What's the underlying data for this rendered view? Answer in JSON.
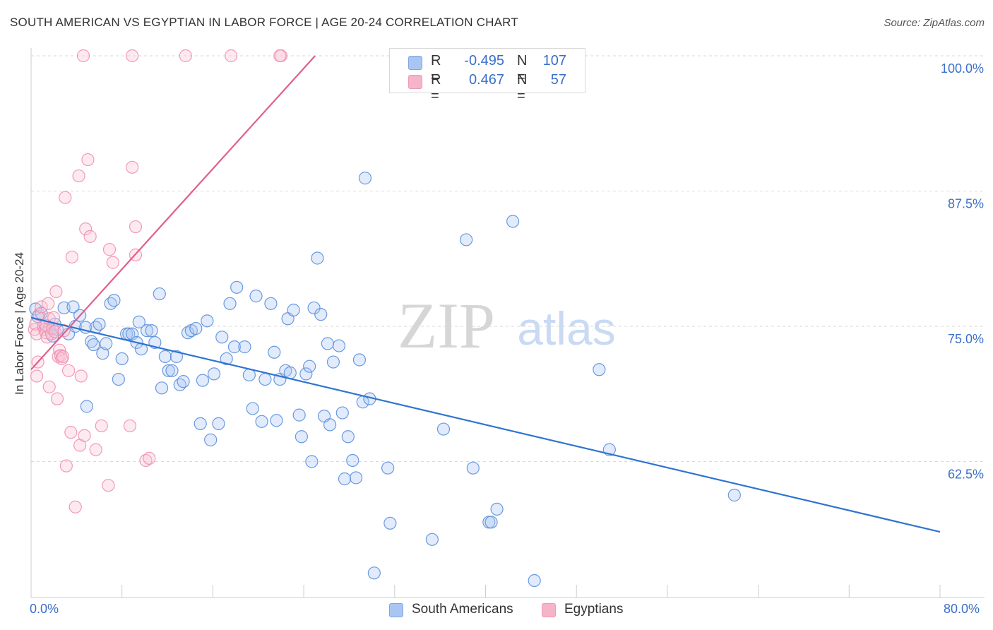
{
  "header": {
    "title": "SOUTH AMERICAN VS EGYPTIAN IN LABOR FORCE | AGE 20-24 CORRELATION CHART",
    "source": "Source: ZipAtlas.com"
  },
  "watermark": {
    "zip": "ZIP",
    "atlas": "atlas"
  },
  "legend": {
    "rows": [
      {
        "r_label": "R =",
        "r_value": "-0.495",
        "n_label": "N =",
        "n_value": "107",
        "color": "#a9c6f3"
      },
      {
        "r_label": "R =",
        "r_value": "0.467",
        "n_label": "N =",
        "n_value": "57",
        "color": "#f6b4c9"
      }
    ]
  },
  "bottom_legend": {
    "items": [
      {
        "label": "South Americans",
        "color": "#a9c6f3"
      },
      {
        "label": "Egyptians",
        "color": "#f6b4c9"
      }
    ]
  },
  "axes": {
    "ylabel": "In Labor Force | Age 20-24",
    "x_min_label": "0.0%",
    "x_max_label": "80.0%",
    "y_tick_labels": [
      "100.0%",
      "87.5%",
      "75.0%",
      "62.5%"
    ]
  },
  "colors": {
    "blue": "#5b8fdc",
    "blue_line": "#2f74d0",
    "pink": "#ef8fb0",
    "pink_line": "#e0608a",
    "tick_text": "#3a6fc9"
  },
  "chart_data": {
    "type": "scatter",
    "title": "SOUTH AMERICAN VS EGYPTIAN IN LABOR FORCE | AGE 20-24 CORRELATION CHART",
    "xlabel": "",
    "ylabel": "In Labor Force | Age 20-24",
    "xlim": [
      0,
      80
    ],
    "ylim": [
      50.5,
      101
    ],
    "yticks": [
      62.5,
      75.0,
      87.5,
      100.0
    ],
    "grid": "horizontal dashed",
    "series": [
      {
        "name": "South Americans",
        "color": "#5b8fdc",
        "r": -0.495,
        "n": 107,
        "trend": {
          "x": [
            0,
            80
          ],
          "y": [
            75.8,
            56.0
          ]
        },
        "points": [
          [
            0.4,
            76.6
          ],
          [
            0.6,
            75.9
          ],
          [
            0.9,
            76.2
          ],
          [
            1.3,
            75.1
          ],
          [
            1.6,
            74.8
          ],
          [
            1.9,
            74.1
          ],
          [
            2.1,
            75.2
          ],
          [
            2.3,
            74.7
          ],
          [
            2.9,
            76.7
          ],
          [
            3.3,
            74.3
          ],
          [
            3.7,
            76.8
          ],
          [
            3.9,
            75.0
          ],
          [
            4.3,
            76.0
          ],
          [
            4.8,
            74.9
          ],
          [
            4.9,
            67.6
          ],
          [
            5.3,
            73.6
          ],
          [
            5.5,
            73.3
          ],
          [
            5.7,
            74.9
          ],
          [
            6.0,
            75.2
          ],
          [
            6.3,
            72.5
          ],
          [
            6.6,
            73.4
          ],
          [
            7.0,
            77.1
          ],
          [
            7.3,
            77.4
          ],
          [
            7.7,
            70.1
          ],
          [
            8.0,
            72.0
          ],
          [
            8.4,
            74.3
          ],
          [
            8.6,
            74.3
          ],
          [
            8.9,
            74.3
          ],
          [
            9.3,
            73.5
          ],
          [
            9.5,
            75.4
          ],
          [
            9.7,
            72.9
          ],
          [
            10.2,
            74.6
          ],
          [
            10.6,
            74.6
          ],
          [
            10.9,
            73.5
          ],
          [
            11.3,
            78.0
          ],
          [
            11.5,
            69.3
          ],
          [
            11.8,
            72.2
          ],
          [
            12.1,
            70.9
          ],
          [
            12.4,
            70.9
          ],
          [
            12.8,
            72.2
          ],
          [
            13.1,
            69.6
          ],
          [
            13.4,
            69.9
          ],
          [
            13.8,
            74.4
          ],
          [
            14.1,
            74.6
          ],
          [
            14.5,
            74.8
          ],
          [
            14.9,
            66.0
          ],
          [
            15.1,
            70.0
          ],
          [
            15.5,
            75.5
          ],
          [
            15.8,
            64.5
          ],
          [
            16.1,
            70.6
          ],
          [
            16.5,
            66.0
          ],
          [
            16.8,
            74.0
          ],
          [
            17.2,
            72.0
          ],
          [
            17.5,
            77.1
          ],
          [
            17.9,
            73.1
          ],
          [
            18.1,
            78.6
          ],
          [
            18.8,
            73.1
          ],
          [
            19.2,
            70.5
          ],
          [
            19.5,
            67.4
          ],
          [
            19.8,
            77.8
          ],
          [
            20.3,
            66.2
          ],
          [
            20.6,
            70.1
          ],
          [
            21.1,
            77.1
          ],
          [
            21.4,
            72.6
          ],
          [
            21.6,
            66.3
          ],
          [
            21.9,
            70.1
          ],
          [
            22.4,
            70.9
          ],
          [
            22.6,
            75.7
          ],
          [
            22.8,
            70.7
          ],
          [
            23.1,
            76.5
          ],
          [
            23.6,
            66.8
          ],
          [
            23.8,
            64.8
          ],
          [
            24.2,
            70.6
          ],
          [
            24.5,
            71.3
          ],
          [
            24.7,
            62.5
          ],
          [
            24.9,
            76.7
          ],
          [
            25.2,
            81.3
          ],
          [
            25.5,
            76.1
          ],
          [
            25.8,
            66.7
          ],
          [
            26.1,
            73.4
          ],
          [
            26.3,
            65.9
          ],
          [
            26.6,
            71.7
          ],
          [
            27.1,
            73.2
          ],
          [
            27.4,
            67.0
          ],
          [
            27.6,
            60.9
          ],
          [
            27.9,
            64.8
          ],
          [
            28.3,
            62.6
          ],
          [
            28.6,
            61.0
          ],
          [
            28.9,
            71.9
          ],
          [
            29.2,
            68.0
          ],
          [
            29.4,
            88.7
          ],
          [
            29.8,
            68.3
          ],
          [
            30.2,
            52.2
          ],
          [
            31.4,
            61.9
          ],
          [
            31.6,
            56.8
          ],
          [
            35.3,
            55.3
          ],
          [
            36.3,
            65.5
          ],
          [
            38.3,
            83.0
          ],
          [
            38.9,
            61.9
          ],
          [
            40.3,
            56.9
          ],
          [
            40.5,
            56.9
          ],
          [
            41.0,
            58.1
          ],
          [
            42.4,
            84.7
          ],
          [
            44.3,
            51.5
          ],
          [
            50.0,
            71.0
          ],
          [
            50.9,
            63.6
          ],
          [
            61.9,
            59.4
          ]
        ]
      },
      {
        "name": "Egyptians",
        "color": "#ef8fb0",
        "r": 0.467,
        "n": 57,
        "trend": {
          "x": [
            0,
            25
          ],
          "y": [
            71.0,
            100.0
          ]
        },
        "points": [
          [
            0.3,
            74.7
          ],
          [
            0.4,
            75.2
          ],
          [
            0.5,
            74.3
          ],
          [
            0.5,
            70.4
          ],
          [
            0.6,
            71.7
          ],
          [
            0.7,
            76.1
          ],
          [
            0.9,
            76.8
          ],
          [
            1.1,
            75.0
          ],
          [
            1.2,
            74.7
          ],
          [
            1.3,
            74.4
          ],
          [
            1.3,
            75.1
          ],
          [
            1.4,
            74.0
          ],
          [
            1.5,
            77.1
          ],
          [
            1.6,
            75.7
          ],
          [
            1.6,
            69.4
          ],
          [
            1.8,
            74.3
          ],
          [
            1.9,
            74.8
          ],
          [
            2.0,
            75.8
          ],
          [
            2.1,
            74.5
          ],
          [
            2.2,
            78.2
          ],
          [
            2.3,
            68.3
          ],
          [
            2.4,
            72.2
          ],
          [
            2.5,
            72.8
          ],
          [
            2.6,
            72.3
          ],
          [
            2.7,
            72.0
          ],
          [
            2.8,
            72.2
          ],
          [
            2.9,
            74.6
          ],
          [
            3.0,
            86.9
          ],
          [
            3.1,
            62.1
          ],
          [
            3.3,
            70.9
          ],
          [
            3.5,
            65.2
          ],
          [
            3.6,
            81.4
          ],
          [
            3.9,
            58.3
          ],
          [
            4.2,
            88.9
          ],
          [
            4.3,
            64.0
          ],
          [
            4.4,
            70.4
          ],
          [
            4.6,
            100.0
          ],
          [
            4.7,
            64.9
          ],
          [
            4.8,
            84.0
          ],
          [
            5.0,
            90.4
          ],
          [
            5.2,
            83.3
          ],
          [
            5.7,
            63.6
          ],
          [
            6.2,
            65.8
          ],
          [
            6.8,
            60.3
          ],
          [
            6.9,
            82.1
          ],
          [
            7.2,
            80.9
          ],
          [
            8.7,
            65.8
          ],
          [
            8.9,
            100.0
          ],
          [
            8.9,
            89.7
          ],
          [
            9.2,
            84.2
          ],
          [
            9.2,
            81.6
          ],
          [
            10.1,
            62.6
          ],
          [
            10.4,
            62.8
          ],
          [
            13.6,
            100.0
          ],
          [
            17.6,
            100.0
          ],
          [
            22.0,
            100.0
          ],
          [
            21.9,
            100.0
          ]
        ]
      }
    ]
  }
}
